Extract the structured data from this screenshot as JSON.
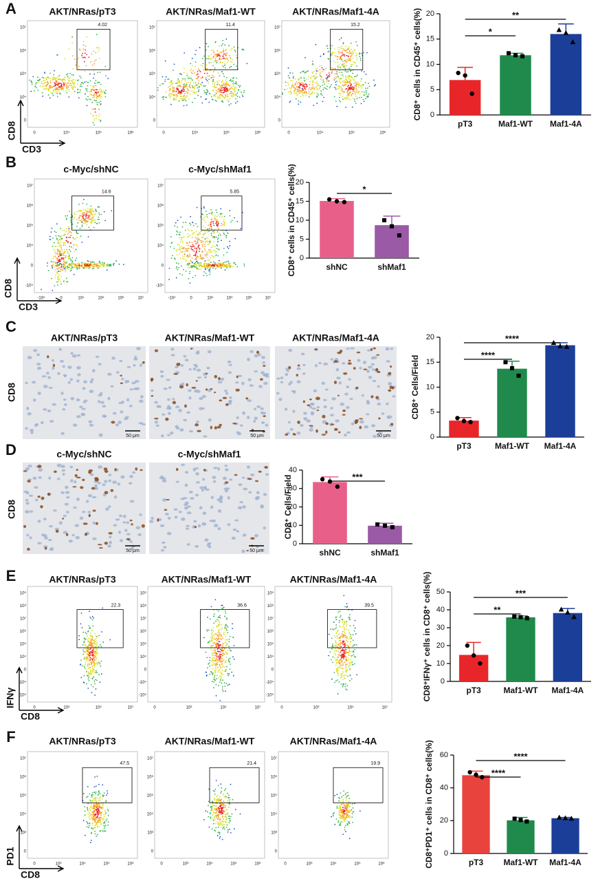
{
  "panel_letters": [
    "A",
    "B",
    "C",
    "D",
    "E",
    "F"
  ],
  "flow_sections": [
    {
      "x_label": "CD3",
      "y_label": "CD8",
      "x_ticks": [
        "0",
        "10⁴",
        "10⁵",
        "10⁶"
      ],
      "y_ticks": [
        "0",
        "10⁴",
        "10⁵",
        "10⁶",
        "10⁷"
      ],
      "plots": [
        {
          "title": "AKT/NRas/pT3",
          "gate": 4.02
        },
        {
          "title": "AKT/NRas/Maf1-WT",
          "gate": 11.4
        },
        {
          "title": "AKT/NRas/Maf1-4A",
          "gate": 15.2
        }
      ]
    },
    {
      "x_label": "CD3",
      "y_label": "CD8",
      "x_ticks": [
        "-10⁴",
        "0",
        "10⁴",
        "10⁵",
        "10⁶",
        "10⁷"
      ],
      "y_ticks": [
        "-10⁴",
        "0",
        "10⁴",
        "10⁵",
        "10⁶",
        "10⁷"
      ],
      "plots": [
        {
          "title": "c-Myc/shNC",
          "gate": 14.6
        },
        {
          "title": "c-Myc/shMaf1",
          "gate": 5.85
        }
      ]
    },
    {
      "x_label": "CD8",
      "y_label": "IFNγ",
      "x_ticks": [
        "0",
        "10³",
        "10⁵",
        "10⁷"
      ],
      "y_ticks": [
        "-10⁵",
        "-10⁴",
        "0",
        "10⁴",
        "10⁵",
        "10⁶",
        "10⁷",
        "10⁸",
        "10⁹"
      ],
      "plots": [
        {
          "title": "AKT/NRas/pT3",
          "gate": 22.3
        },
        {
          "title": "AKT/NRas/Maf1-WT",
          "gate": 36.6
        },
        {
          "title": "AKT/NRas/Maf1-4A",
          "gate": 39.5
        }
      ]
    },
    {
      "x_label": "CD8",
      "y_label": "PD1",
      "x_ticks": [
        "0",
        "10³",
        "10⁴",
        "10⁵",
        "10⁶"
      ],
      "y_ticks": [
        "0",
        "10³",
        "10⁴",
        "10⁵",
        "10⁶",
        "10⁷"
      ],
      "plots": [
        {
          "title": "AKT/NRas/pT3",
          "gate": 47.5
        },
        {
          "title": "AKT/NRas/Maf1-WT",
          "gate": 21.4
        },
        {
          "title": "AKT/NRas/Maf1-4A",
          "gate": 19.9
        }
      ]
    }
  ],
  "ihc_sections": [
    {
      "row_label": "CD8",
      "scale_bar": "50 μm",
      "images": [
        {
          "title": "AKT/NRas/pT3"
        },
        {
          "title": "AKT/NRas/Maf1-WT"
        },
        {
          "title": "AKT/NRas/Maf1-4A"
        }
      ]
    },
    {
      "row_label": "CD8",
      "scale_bar": "50 μm",
      "images": [
        {
          "title": "c-Myc/shNC"
        },
        {
          "title": "c-Myc/shMaf1"
        }
      ]
    }
  ],
  "chart_data": [
    {
      "type": "bar",
      "ylabel": "CD8⁺ cells in CD45⁺ cells(%)",
      "categories": [
        "pT3",
        "Maf1-WT",
        "Maf1-4A"
      ],
      "values": [
        6.9,
        11.8,
        16.0
      ],
      "errors": [
        2.5,
        0.4,
        2.0
      ],
      "points": [
        [
          8.3,
          7.8,
          4.2
        ],
        [
          12.2,
          11.8,
          11.6
        ],
        [
          16.8,
          16.2,
          14.4
        ]
      ],
      "colors": [
        "#e8262a",
        "#1f8a4c",
        "#1b3e98"
      ],
      "ylim": [
        0,
        20
      ],
      "yticks": [
        0,
        5,
        10,
        15,
        20
      ],
      "comparisons": [
        {
          "groups": [
            "pT3",
            "Maf1-WT"
          ],
          "label": "*"
        },
        {
          "groups": [
            "pT3",
            "Maf1-4A"
          ],
          "label": "**"
        }
      ]
    },
    {
      "type": "bar",
      "ylabel": "CD8⁺ cells in CD45⁺ cells(%)",
      "categories": [
        "shNC",
        "shMaf1"
      ],
      "values": [
        15.1,
        8.7
      ],
      "errors": [
        0.6,
        2.4
      ],
      "points": [
        [
          15.5,
          15.0,
          14.8
        ],
        [
          10.0,
          8.4,
          6.0
        ]
      ],
      "colors": [
        "#e8608a",
        "#9a5aa6"
      ],
      "ylim": [
        0,
        20
      ],
      "yticks": [
        0,
        5,
        10,
        15,
        20
      ],
      "comparisons": [
        {
          "groups": [
            "shNC",
            "shMaf1"
          ],
          "label": "*"
        }
      ]
    },
    {
      "type": "bar",
      "ylabel": "CD8⁺ Cells/Field",
      "categories": [
        "pT3",
        "Maf1-WT",
        "Maf1-4A"
      ],
      "values": [
        3.3,
        13.7,
        18.4
      ],
      "errors": [
        0.6,
        1.5,
        0.5
      ],
      "points": [
        [
          3.8,
          3.2,
          3.0
        ],
        [
          15.0,
          13.8,
          12.3
        ],
        [
          18.9,
          18.2,
          18.1
        ]
      ],
      "colors": [
        "#e8262a",
        "#1f8a4c",
        "#1b3e98"
      ],
      "ylim": [
        0,
        20
      ],
      "yticks": [
        0,
        5,
        10,
        15,
        20
      ],
      "comparisons": [
        {
          "groups": [
            "pT3",
            "Maf1-WT"
          ],
          "label": "****"
        },
        {
          "groups": [
            "pT3",
            "Maf1-4A"
          ],
          "label": "****"
        }
      ]
    },
    {
      "type": "bar",
      "ylabel": "CD8⁺ Cells/Field",
      "categories": [
        "shNC",
        "shMaf1"
      ],
      "values": [
        33.5,
        9.8
      ],
      "errors": [
        2.8,
        1.3
      ],
      "points": [
        [
          35.0,
          33.8,
          31.0
        ],
        [
          10.5,
          9.8,
          9.0
        ]
      ],
      "colors": [
        "#e8608a",
        "#9a5aa6"
      ],
      "ylim": [
        0,
        40
      ],
      "yticks": [
        0,
        10,
        20,
        30,
        40
      ],
      "comparisons": [
        {
          "groups": [
            "shNC",
            "shMaf1"
          ],
          "label": "***"
        }
      ]
    },
    {
      "type": "bar",
      "ylabel": "CD8⁺IFNγ⁺ cells in CD8⁺ cells(%)",
      "categories": [
        "pT3",
        "Maf1-WT",
        "Maf1-4A"
      ],
      "values": [
        14.8,
        35.8,
        38.2
      ],
      "errors": [
        7.0,
        0.8,
        2.5
      ],
      "points": [
        [
          20.0,
          14.5,
          10.0
        ],
        [
          36.2,
          35.9,
          35.3
        ],
        [
          40.2,
          38.5,
          36.0
        ]
      ],
      "colors": [
        "#e8262a",
        "#1f8a4c",
        "#1b3e98"
      ],
      "ylim": [
        0,
        50
      ],
      "yticks": [
        0,
        10,
        20,
        30,
        40,
        50
      ],
      "comparisons": [
        {
          "groups": [
            "pT3",
            "Maf1-WT"
          ],
          "label": "**"
        },
        {
          "groups": [
            "pT3",
            "Maf1-4A"
          ],
          "label": "***"
        }
      ]
    },
    {
      "type": "bar",
      "ylabel": "CD8⁺PD1⁺ cells in CD8⁺ cells(%)",
      "categories": [
        "pT3",
        "Maf1-WT",
        "Maf1-4A"
      ],
      "values": [
        47.7,
        20.2,
        21.5
      ],
      "errors": [
        2.5,
        1.8,
        0.5
      ],
      "points": [
        [
          49.5,
          48.0,
          46.5
        ],
        [
          21.2,
          20.4,
          19.5
        ],
        [
          22.0,
          21.6,
          21.3
        ]
      ],
      "colors": [
        "#e8433d",
        "#1f8a4c",
        "#1b3e98"
      ],
      "ylim": [
        0,
        60
      ],
      "yticks": [
        0,
        20,
        40,
        60
      ],
      "comparisons": [
        {
          "groups": [
            "pT3",
            "Maf1-WT"
          ],
          "label": "****"
        },
        {
          "groups": [
            "pT3",
            "Maf1-4A"
          ],
          "label": "****"
        }
      ]
    }
  ]
}
